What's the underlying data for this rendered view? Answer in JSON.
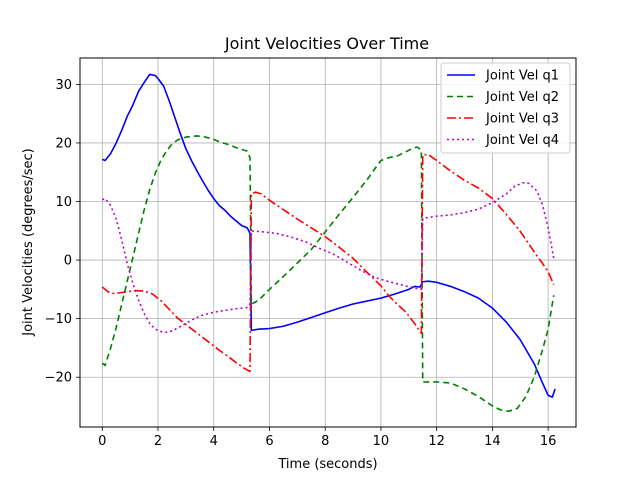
{
  "chart_data": {
    "type": "line",
    "title": "Joint Velocities Over Time",
    "xlabel": "Time (seconds)",
    "ylabel": "Joint Velocities (degrees/sec)",
    "xlim": [
      -0.8,
      17.0
    ],
    "ylim": [
      -28.5,
      34.5
    ],
    "xticks": [
      0,
      2,
      4,
      6,
      8,
      10,
      12,
      14,
      16
    ],
    "yticks": [
      -20,
      -10,
      0,
      10,
      20,
      30
    ],
    "grid": true,
    "legend_position": "top-right",
    "series": [
      {
        "name": "Joint Vel q1",
        "color": "#0000ff",
        "dash": "solid",
        "points": [
          [
            0,
            17.2
          ],
          [
            0.1,
            17.0
          ],
          [
            0.3,
            18.2
          ],
          [
            0.5,
            20.0
          ],
          [
            0.7,
            22.2
          ],
          [
            0.9,
            24.6
          ],
          [
            1.1,
            26.5
          ],
          [
            1.3,
            28.8
          ],
          [
            1.5,
            30.3
          ],
          [
            1.7,
            31.7
          ],
          [
            1.9,
            31.5
          ],
          [
            2.0,
            31.0
          ],
          [
            2.2,
            29.7
          ],
          [
            2.4,
            27.2
          ],
          [
            2.6,
            24.4
          ],
          [
            2.8,
            21.6
          ],
          [
            3.0,
            19.0
          ],
          [
            3.2,
            17.0
          ],
          [
            3.4,
            15.2
          ],
          [
            3.6,
            13.5
          ],
          [
            3.8,
            11.9
          ],
          [
            4.0,
            10.5
          ],
          [
            4.2,
            9.3
          ],
          [
            4.4,
            8.5
          ],
          [
            4.6,
            7.5
          ],
          [
            4.8,
            6.7
          ],
          [
            5.0,
            5.9
          ],
          [
            5.2,
            5.5
          ],
          [
            5.3,
            4.6
          ],
          [
            5.35,
            -12.0
          ],
          [
            5.6,
            -11.8
          ],
          [
            6.0,
            -11.7
          ],
          [
            6.5,
            -11.3
          ],
          [
            7.0,
            -10.6
          ],
          [
            7.5,
            -9.8
          ],
          [
            8.0,
            -9.0
          ],
          [
            8.5,
            -8.2
          ],
          [
            9.0,
            -7.5
          ],
          [
            9.5,
            -7.0
          ],
          [
            10.0,
            -6.5
          ],
          [
            10.5,
            -5.8
          ],
          [
            11.0,
            -5.0
          ],
          [
            11.2,
            -4.5
          ],
          [
            11.4,
            -4.6
          ],
          [
            11.5,
            -3.7
          ],
          [
            11.7,
            -3.6
          ],
          [
            12.0,
            -3.8
          ],
          [
            12.5,
            -4.5
          ],
          [
            13.0,
            -5.4
          ],
          [
            13.5,
            -6.5
          ],
          [
            14.0,
            -8.2
          ],
          [
            14.5,
            -10.6
          ],
          [
            15.0,
            -13.6
          ],
          [
            15.5,
            -17.7
          ],
          [
            15.8,
            -21.0
          ],
          [
            16.0,
            -23.1
          ],
          [
            16.15,
            -23.4
          ],
          [
            16.25,
            -22.0
          ]
        ]
      },
      {
        "name": "Joint Vel q2",
        "color": "#008000",
        "dash": "6,4",
        "points": [
          [
            0,
            -17.6
          ],
          [
            0.1,
            -18.0
          ],
          [
            0.3,
            -15.0
          ],
          [
            0.5,
            -11.5
          ],
          [
            0.7,
            -7.5
          ],
          [
            0.9,
            -3.5
          ],
          [
            1.1,
            0.5
          ],
          [
            1.3,
            4.5
          ],
          [
            1.5,
            8.5
          ],
          [
            1.7,
            12.0
          ],
          [
            1.9,
            14.8
          ],
          [
            2.1,
            17.0
          ],
          [
            2.3,
            18.6
          ],
          [
            2.5,
            19.8
          ],
          [
            2.7,
            20.5
          ],
          [
            3.0,
            21.0
          ],
          [
            3.4,
            21.2
          ],
          [
            3.7,
            21.0
          ],
          [
            4.0,
            20.6
          ],
          [
            4.2,
            20.2
          ],
          [
            4.4,
            19.9
          ],
          [
            4.6,
            19.6
          ],
          [
            4.8,
            19.2
          ],
          [
            5.0,
            18.9
          ],
          [
            5.2,
            18.6
          ],
          [
            5.3,
            17.5
          ],
          [
            5.35,
            -7.5
          ],
          [
            5.6,
            -6.9
          ],
          [
            6.0,
            -5.0
          ],
          [
            6.5,
            -2.8
          ],
          [
            7.0,
            -0.5
          ],
          [
            7.5,
            1.8
          ],
          [
            8.0,
            4.8
          ],
          [
            8.5,
            7.8
          ],
          [
            9.0,
            10.7
          ],
          [
            9.5,
            13.7
          ],
          [
            9.8,
            15.7
          ],
          [
            10.0,
            17.0
          ],
          [
            10.3,
            17.5
          ],
          [
            10.6,
            17.8
          ],
          [
            10.9,
            18.5
          ],
          [
            11.1,
            19.0
          ],
          [
            11.3,
            19.3
          ],
          [
            11.45,
            18.8
          ],
          [
            11.5,
            -20.8
          ],
          [
            12.0,
            -20.8
          ],
          [
            12.5,
            -21.0
          ],
          [
            13.0,
            -22.0
          ],
          [
            13.5,
            -23.3
          ],
          [
            14.0,
            -24.9
          ],
          [
            14.3,
            -25.6
          ],
          [
            14.6,
            -25.8
          ],
          [
            14.9,
            -25.3
          ],
          [
            15.2,
            -23.3
          ],
          [
            15.5,
            -20.0
          ],
          [
            15.8,
            -15.3
          ],
          [
            16.0,
            -11.8
          ],
          [
            16.2,
            -6.0
          ]
        ]
      },
      {
        "name": "Joint Vel q3",
        "color": "#ff0000",
        "dash": "9,3,2,3",
        "points": [
          [
            0,
            -4.6
          ],
          [
            0.2,
            -5.4
          ],
          [
            0.4,
            -5.7
          ],
          [
            0.6,
            -5.6
          ],
          [
            0.9,
            -5.4
          ],
          [
            1.2,
            -5.2
          ],
          [
            1.5,
            -5.3
          ],
          [
            1.8,
            -5.8
          ],
          [
            2.1,
            -6.9
          ],
          [
            2.4,
            -8.4
          ],
          [
            2.7,
            -9.9
          ],
          [
            3.0,
            -11.0
          ],
          [
            3.3,
            -12.1
          ],
          [
            3.6,
            -13.2
          ],
          [
            3.9,
            -14.3
          ],
          [
            4.2,
            -15.4
          ],
          [
            4.5,
            -16.4
          ],
          [
            4.8,
            -17.5
          ],
          [
            5.1,
            -18.5
          ],
          [
            5.3,
            -19.0
          ],
          [
            5.35,
            11.3
          ],
          [
            5.5,
            11.6
          ],
          [
            5.7,
            11.3
          ],
          [
            6.0,
            10.2
          ],
          [
            6.5,
            8.6
          ],
          [
            7.0,
            7.0
          ],
          [
            7.5,
            5.5
          ],
          [
            8.0,
            4.0
          ],
          [
            8.5,
            2.2
          ],
          [
            9.0,
            0.3
          ],
          [
            9.5,
            -2.1
          ],
          [
            10.0,
            -4.4
          ],
          [
            10.3,
            -6.2
          ],
          [
            10.6,
            -7.6
          ],
          [
            10.9,
            -8.9
          ],
          [
            11.2,
            -10.8
          ],
          [
            11.45,
            -12.5
          ],
          [
            11.5,
            18.0
          ],
          [
            11.7,
            18.0
          ],
          [
            12.0,
            17.0
          ],
          [
            12.5,
            15.2
          ],
          [
            13.0,
            13.6
          ],
          [
            13.5,
            12.3
          ],
          [
            14.0,
            10.5
          ],
          [
            14.5,
            7.8
          ],
          [
            15.0,
            4.9
          ],
          [
            15.5,
            1.4
          ],
          [
            15.8,
            -0.6
          ],
          [
            16.0,
            -2.0
          ],
          [
            16.2,
            -4.2
          ]
        ]
      },
      {
        "name": "Joint Vel q4",
        "color": "#bf00bf",
        "dash": "2,3",
        "points": [
          [
            0,
            10.3
          ],
          [
            0.1,
            10.5
          ],
          [
            0.3,
            9.3
          ],
          [
            0.5,
            7.0
          ],
          [
            0.7,
            3.4
          ],
          [
            0.9,
            -0.7
          ],
          [
            1.1,
            -4.0
          ],
          [
            1.3,
            -6.8
          ],
          [
            1.5,
            -9.1
          ],
          [
            1.7,
            -10.8
          ],
          [
            1.9,
            -11.8
          ],
          [
            2.1,
            -12.2
          ],
          [
            2.3,
            -12.3
          ],
          [
            2.5,
            -12.1
          ],
          [
            2.7,
            -11.6
          ],
          [
            3.0,
            -10.8
          ],
          [
            3.3,
            -10.0
          ],
          [
            3.6,
            -9.4
          ],
          [
            4.0,
            -8.9
          ],
          [
            4.4,
            -8.6
          ],
          [
            4.8,
            -8.3
          ],
          [
            5.2,
            -8.1
          ],
          [
            5.3,
            -7.5
          ],
          [
            5.35,
            5.0
          ],
          [
            5.8,
            4.8
          ],
          [
            6.3,
            4.5
          ],
          [
            6.8,
            3.9
          ],
          [
            7.3,
            3.1
          ],
          [
            7.8,
            2.0
          ],
          [
            8.3,
            1.0
          ],
          [
            8.8,
            -0.4
          ],
          [
            9.3,
            -1.8
          ],
          [
            9.8,
            -3.0
          ],
          [
            10.3,
            -3.7
          ],
          [
            10.8,
            -4.3
          ],
          [
            11.2,
            -4.8
          ],
          [
            11.45,
            -5.0
          ],
          [
            11.5,
            7.1
          ],
          [
            12.0,
            7.5
          ],
          [
            12.5,
            7.7
          ],
          [
            13.0,
            8.1
          ],
          [
            13.5,
            8.7
          ],
          [
            14.0,
            9.8
          ],
          [
            14.5,
            11.3
          ],
          [
            14.8,
            12.6
          ],
          [
            15.1,
            13.2
          ],
          [
            15.3,
            13.1
          ],
          [
            15.6,
            11.8
          ],
          [
            15.8,
            9.4
          ],
          [
            16.0,
            5.5
          ],
          [
            16.2,
            0.3
          ]
        ]
      }
    ]
  }
}
